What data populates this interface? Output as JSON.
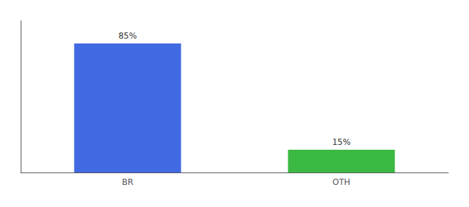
{
  "chart_data": {
    "type": "bar",
    "categories": [
      "BR",
      "OTH"
    ],
    "values": [
      85,
      15
    ],
    "colors": [
      "#4169E1",
      "#3CB943"
    ],
    "value_labels": [
      "85%",
      "15%"
    ],
    "data_labels": true,
    "ylim": [
      0,
      100
    ],
    "yticks": [],
    "tick_labels": "x",
    "grid": false
  }
}
